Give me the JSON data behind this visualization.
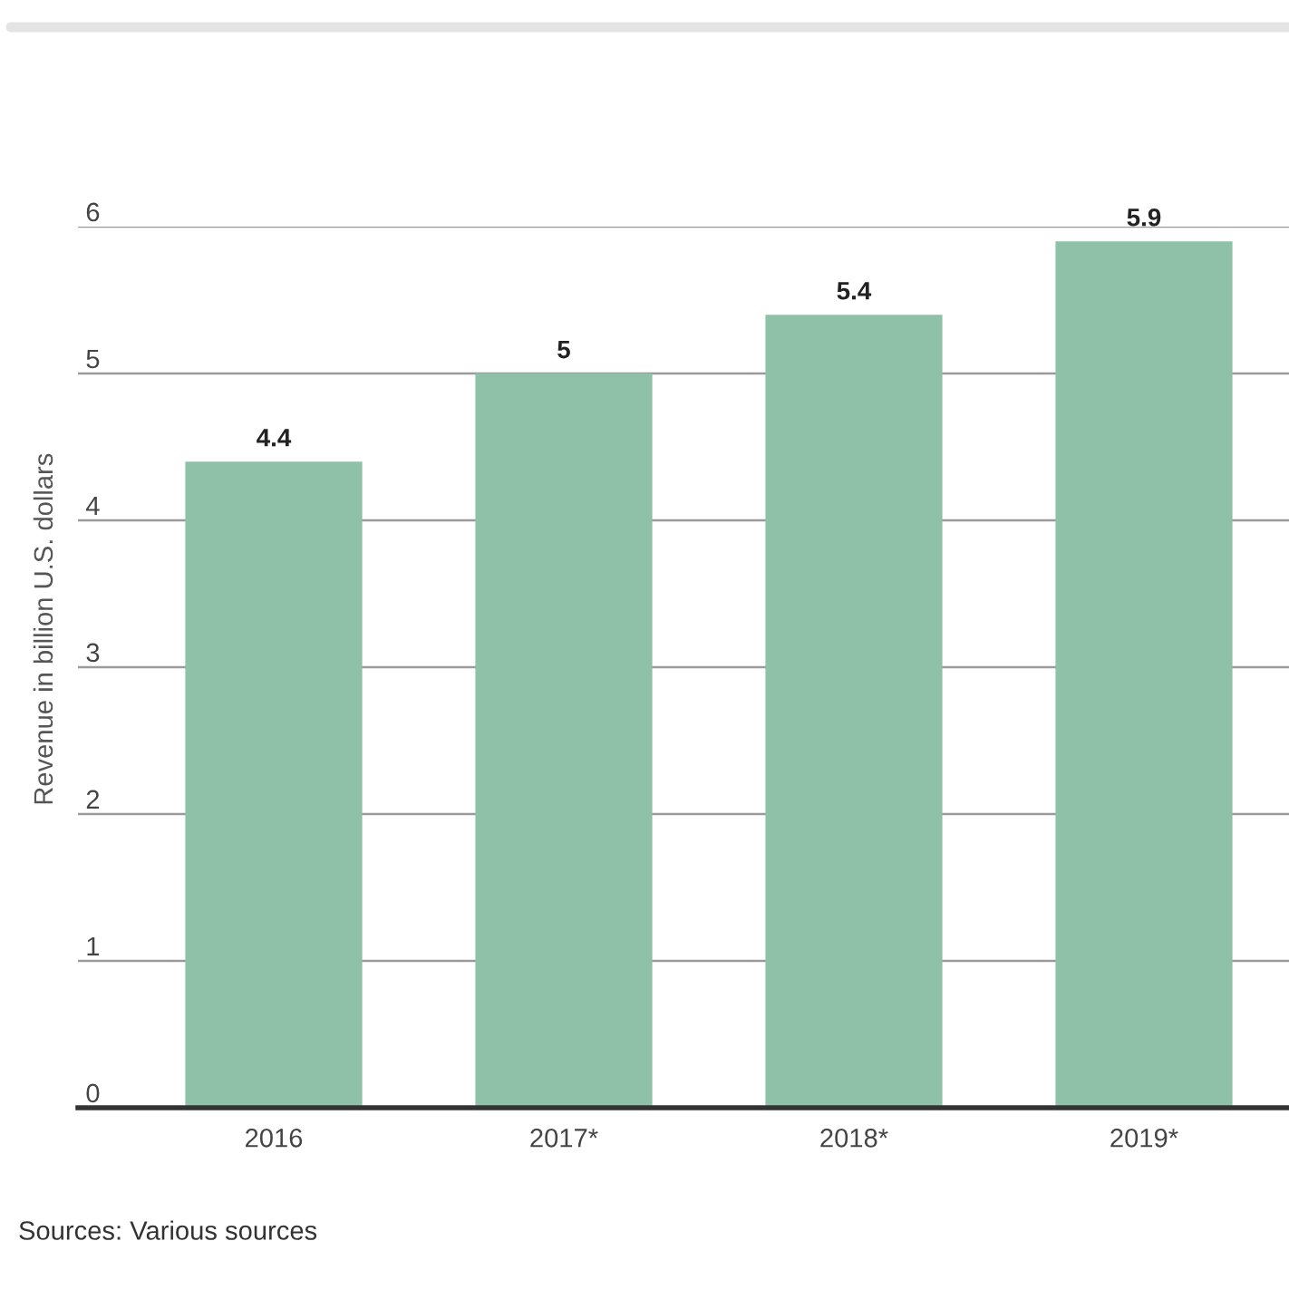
{
  "chart_data": {
    "type": "bar",
    "ylabel": "Revenue in billion U.S. dollars",
    "categories": [
      "2016",
      "2017*",
      "2018*",
      "2019*"
    ],
    "values": [
      4.4,
      5,
      5.4,
      5.9
    ],
    "color": "#8fc1a8",
    "ylim": [
      0,
      6
    ],
    "yticks": [
      0,
      1,
      2,
      3,
      4,
      5,
      6
    ],
    "grid": "y",
    "data_labels": true,
    "annotations": [
      "Sources: Various sources"
    ]
  }
}
